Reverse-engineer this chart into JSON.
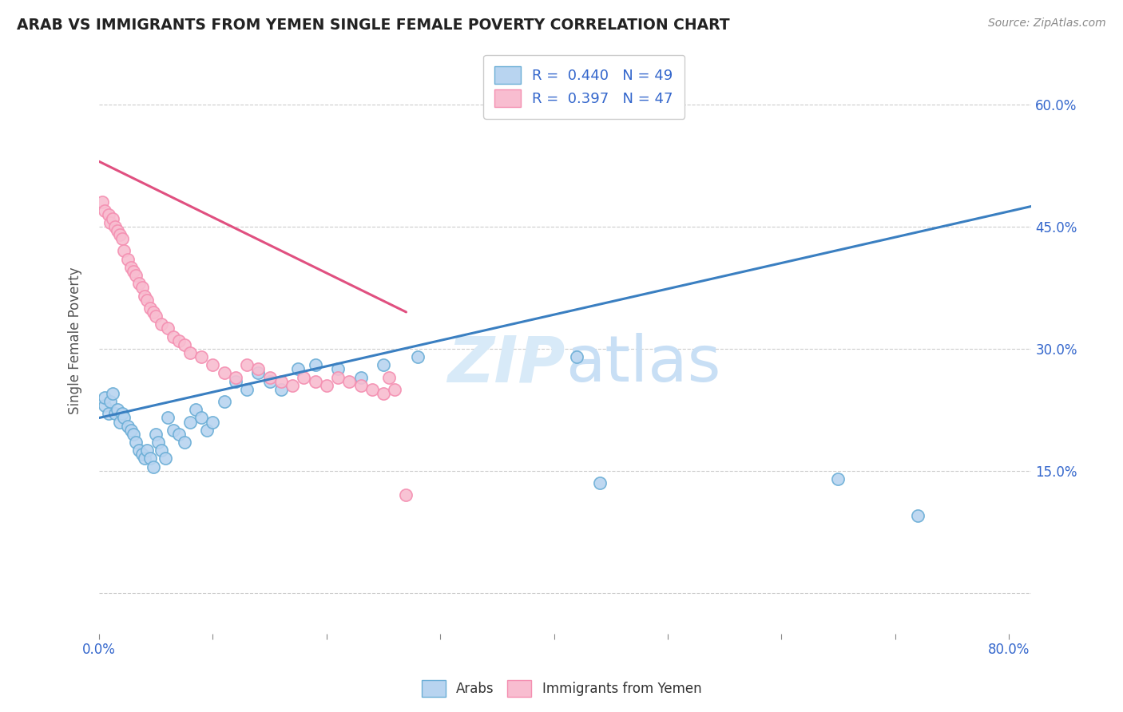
{
  "title": "ARAB VS IMMIGRANTS FROM YEMEN SINGLE FEMALE POVERTY CORRELATION CHART",
  "source": "Source: ZipAtlas.com",
  "ylabel": "Single Female Poverty",
  "yticks": [
    0.0,
    0.15,
    0.3,
    0.45,
    0.6
  ],
  "ytick_labels": [
    "",
    "15.0%",
    "30.0%",
    "45.0%",
    "60.0%"
  ],
  "xlim": [
    0.0,
    0.82
  ],
  "ylim": [
    -0.05,
    0.67
  ],
  "legend_R_arab": "0.440",
  "legend_N_arab": "49",
  "legend_R_yemen": "0.397",
  "legend_N_yemen": "47",
  "arab_color": "#b8d4f0",
  "yemen_color": "#f8bdd0",
  "arab_edge_color": "#6baed6",
  "yemen_edge_color": "#f48fb1",
  "arab_line_color": "#3a7fc1",
  "yemen_line_color": "#e05080",
  "watermark_color": "#d8eaf8",
  "arab_scatter_x": [
    0.005,
    0.005,
    0.008,
    0.01,
    0.012,
    0.014,
    0.016,
    0.018,
    0.02,
    0.022,
    0.025,
    0.028,
    0.03,
    0.032,
    0.035,
    0.038,
    0.04,
    0.042,
    0.045,
    0.048,
    0.05,
    0.052,
    0.055,
    0.058,
    0.06,
    0.065,
    0.07,
    0.075,
    0.08,
    0.085,
    0.09,
    0.095,
    0.1,
    0.11,
    0.12,
    0.13,
    0.14,
    0.15,
    0.16,
    0.175,
    0.19,
    0.21,
    0.23,
    0.25,
    0.28,
    0.42,
    0.44,
    0.65,
    0.72
  ],
  "arab_scatter_y": [
    0.23,
    0.24,
    0.22,
    0.235,
    0.245,
    0.22,
    0.225,
    0.21,
    0.22,
    0.215,
    0.205,
    0.2,
    0.195,
    0.185,
    0.175,
    0.17,
    0.165,
    0.175,
    0.165,
    0.155,
    0.195,
    0.185,
    0.175,
    0.165,
    0.215,
    0.2,
    0.195,
    0.185,
    0.21,
    0.225,
    0.215,
    0.2,
    0.21,
    0.235,
    0.26,
    0.25,
    0.27,
    0.26,
    0.25,
    0.275,
    0.28,
    0.275,
    0.265,
    0.28,
    0.29,
    0.29,
    0.135,
    0.14,
    0.095
  ],
  "yemen_scatter_x": [
    0.003,
    0.005,
    0.008,
    0.01,
    0.012,
    0.014,
    0.016,
    0.018,
    0.02,
    0.022,
    0.025,
    0.028,
    0.03,
    0.032,
    0.035,
    0.038,
    0.04,
    0.042,
    0.045,
    0.048,
    0.05,
    0.055,
    0.06,
    0.065,
    0.07,
    0.075,
    0.08,
    0.09,
    0.1,
    0.11,
    0.12,
    0.13,
    0.14,
    0.15,
    0.16,
    0.17,
    0.18,
    0.19,
    0.2,
    0.21,
    0.22,
    0.23,
    0.24,
    0.25,
    0.255,
    0.26,
    0.27
  ],
  "yemen_scatter_y": [
    0.48,
    0.47,
    0.465,
    0.455,
    0.46,
    0.45,
    0.445,
    0.44,
    0.435,
    0.42,
    0.41,
    0.4,
    0.395,
    0.39,
    0.38,
    0.375,
    0.365,
    0.36,
    0.35,
    0.345,
    0.34,
    0.33,
    0.325,
    0.315,
    0.31,
    0.305,
    0.295,
    0.29,
    0.28,
    0.27,
    0.265,
    0.28,
    0.275,
    0.265,
    0.26,
    0.255,
    0.265,
    0.26,
    0.255,
    0.265,
    0.26,
    0.255,
    0.25,
    0.245,
    0.265,
    0.25,
    0.12
  ],
  "arab_line_x0": 0.0,
  "arab_line_y0": 0.215,
  "arab_line_x1": 0.82,
  "arab_line_y1": 0.475,
  "yemen_line_x0": 0.0,
  "yemen_line_y0": 0.53,
  "yemen_line_x1": 0.27,
  "yemen_line_y1": 0.345
}
